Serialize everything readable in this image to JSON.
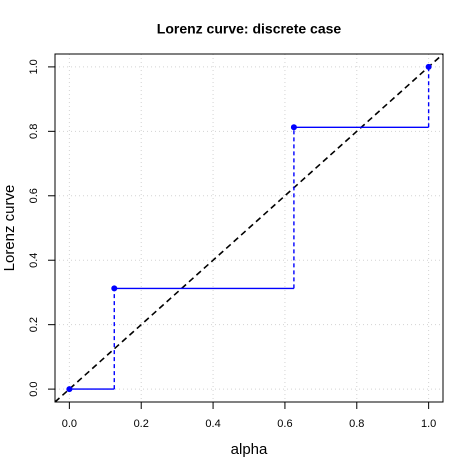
{
  "chart_data": {
    "type": "step",
    "title": "Lorenz curve: discrete case",
    "x_label": "alpha",
    "y_label": "Lorenz curve",
    "x": [
      0,
      0.125,
      0.625,
      1
    ],
    "values": [
      0,
      0.3125,
      0.8125,
      1
    ],
    "color": "#0000ff",
    "diagonal": true,
    "diagonal_color": "#000000",
    "xlim": [
      -0.04,
      1.04
    ],
    "ylim": [
      -0.04,
      1.04
    ],
    "xticks": [
      {
        "value": 0,
        "label": "0.0"
      },
      0.2,
      0.4,
      0.6,
      0.8,
      {
        "value": 1,
        "label": "1.0"
      }
    ],
    "yticks": [
      {
        "value": 0,
        "label": "0.0"
      },
      0.2,
      0.4,
      0.6,
      0.8,
      {
        "value": 1,
        "label": "1.0"
      }
    ],
    "grid": true
  }
}
